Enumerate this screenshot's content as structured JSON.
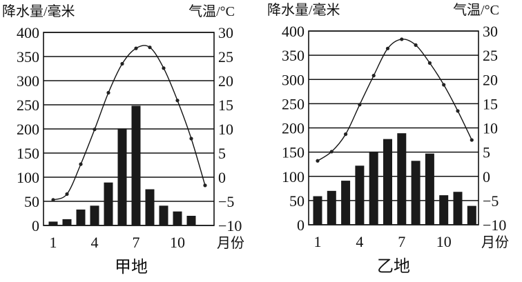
{
  "chart_data": [
    {
      "type": "bar+line",
      "title": "甲地",
      "xlabel": "月份",
      "ylabel_left": "降水量/毫米",
      "ylabel_right": "气温/°C",
      "x": [
        1,
        2,
        3,
        4,
        5,
        6,
        7,
        8,
        9,
        10,
        11,
        12
      ],
      "x_tick_labels": [
        "1",
        "4",
        "7",
        "10"
      ],
      "left_ticks": [
        "0",
        "50",
        "100",
        "150",
        "200",
        "250",
        "300",
        "350",
        "400"
      ],
      "right_ticks": [
        "-10",
        "-5",
        "0",
        "5",
        "10",
        "15",
        "20",
        "25",
        "30"
      ],
      "ylim_left": [
        0,
        400
      ],
      "ylim_right": [
        -10,
        30
      ],
      "grid": true,
      "series": [
        {
          "name": "降水量",
          "type": "bar",
          "values": [
            8,
            13,
            33,
            41,
            89,
            201,
            248,
            75,
            41,
            29,
            20,
            0
          ]
        },
        {
          "name": "气温",
          "type": "line",
          "values": [
            -4.7,
            -3.5,
            2.7,
            9.9,
            17.5,
            23.5,
            26.7,
            26.9,
            22.6,
            15.9,
            8.0,
            -1.7
          ]
        }
      ]
    },
    {
      "type": "bar+line",
      "title": "乙地",
      "xlabel": "月份",
      "ylabel_left": "降水量/毫米",
      "ylabel_right": "气温/°C",
      "x": [
        1,
        2,
        3,
        4,
        5,
        6,
        7,
        8,
        9,
        10,
        11,
        12
      ],
      "x_tick_labels": [
        "1",
        "4",
        "7",
        "10"
      ],
      "left_ticks": [
        "0",
        "50",
        "100",
        "150",
        "200",
        "250",
        "300",
        "350",
        "400"
      ],
      "right_ticks": [
        "-10",
        "-5",
        "0",
        "5",
        "10",
        "15",
        "20",
        "25",
        "30"
      ],
      "ylim_left": [
        0,
        400
      ],
      "ylim_right": [
        -10,
        30
      ],
      "grid": true,
      "series": [
        {
          "name": "降水量",
          "type": "bar",
          "values": [
            59,
            70,
            91,
            122,
            151,
            177,
            189,
            132,
            147,
            61,
            68,
            39
          ]
        },
        {
          "name": "气温",
          "type": "line",
          "values": [
            3.2,
            5.1,
            8.7,
            14.8,
            20.8,
            26.4,
            28.3,
            27.1,
            23.4,
            18.9,
            13.5,
            7.5
          ]
        }
      ]
    }
  ]
}
